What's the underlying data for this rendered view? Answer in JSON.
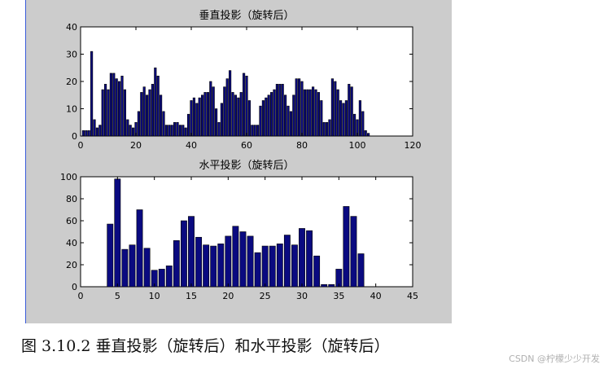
{
  "caption": "图 3.10.2 垂直投影（旋转后）和水平投影（旋转后）",
  "watermark": "CSDN @柠檬少少开发",
  "colors": {
    "bar": "#0a0a80",
    "axes_bg": "#ffffff",
    "figure_bg": "#cccccc"
  },
  "chart_data": [
    {
      "type": "bar",
      "title": "垂直投影（旋转后）",
      "xlabel": "",
      "ylabel": "",
      "xlim": [
        0,
        120
      ],
      "ylim": [
        0,
        40
      ],
      "xticks": [
        0,
        20,
        40,
        60,
        80,
        100,
        120
      ],
      "yticks": [
        0,
        10,
        20,
        30,
        40
      ],
      "x": [
        1,
        2,
        3,
        4,
        5,
        6,
        7,
        8,
        9,
        10,
        11,
        12,
        13,
        14,
        15,
        16,
        17,
        18,
        19,
        20,
        21,
        22,
        23,
        24,
        25,
        26,
        27,
        28,
        29,
        30,
        31,
        32,
        33,
        34,
        35,
        36,
        37,
        38,
        39,
        40,
        41,
        42,
        43,
        44,
        45,
        46,
        47,
        48,
        49,
        50,
        51,
        52,
        53,
        54,
        55,
        56,
        57,
        58,
        59,
        60,
        61,
        62,
        63,
        64,
        65,
        66,
        67,
        68,
        69,
        70,
        71,
        72,
        73,
        74,
        75,
        76,
        77,
        78,
        79,
        80,
        81,
        82,
        83,
        84,
        85,
        86,
        87,
        88,
        89,
        90,
        91,
        92,
        93,
        94,
        95,
        96,
        97,
        98,
        99,
        100,
        101,
        102,
        103,
        104,
        105,
        106,
        107,
        108,
        109
      ],
      "values": [
        2,
        2,
        2,
        31,
        6,
        3,
        4,
        17,
        19,
        17,
        23,
        23,
        21,
        20,
        22,
        17,
        6,
        4,
        3,
        5,
        9,
        16,
        18,
        15,
        17,
        19,
        25,
        22,
        15,
        9,
        4,
        4,
        4,
        5,
        5,
        4,
        4,
        3,
        8,
        13,
        14,
        12,
        14,
        15,
        16,
        16,
        20,
        18,
        10,
        5,
        12,
        18,
        21,
        24,
        16,
        15,
        14,
        16,
        23,
        22,
        13,
        4,
        4,
        4,
        11,
        13,
        14,
        15,
        16,
        17,
        19,
        19,
        19,
        15,
        11,
        9,
        15,
        21,
        21,
        20,
        17,
        17,
        17,
        18,
        17,
        16,
        13,
        5,
        5,
        6,
        21,
        20,
        17,
        13,
        12,
        13,
        19,
        18,
        8,
        6,
        13,
        9,
        2,
        1,
        0,
        0,
        0,
        0,
        0
      ]
    },
    {
      "type": "bar",
      "title": "水平投影（旋转后）",
      "xlabel": "",
      "ylabel": "",
      "xlim": [
        0,
        45
      ],
      "ylim": [
        0,
        100
      ],
      "xticks": [
        0,
        5,
        10,
        15,
        20,
        25,
        30,
        35,
        40,
        45
      ],
      "yticks": [
        0,
        20,
        40,
        60,
        80,
        100
      ],
      "x": [
        4,
        5,
        6,
        7,
        8,
        9,
        10,
        11,
        12,
        13,
        14,
        15,
        16,
        17,
        18,
        19,
        20,
        21,
        22,
        23,
        24,
        25,
        26,
        27,
        28,
        29,
        30,
        31,
        32,
        33,
        34,
        35,
        36,
        37,
        38
      ],
      "values": [
        57,
        98,
        34,
        38,
        70,
        35,
        15,
        16,
        19,
        42,
        60,
        64,
        45,
        38,
        37,
        39,
        46,
        55,
        50,
        46,
        31,
        37,
        37,
        39,
        47,
        38,
        53,
        51,
        28,
        2,
        2,
        16,
        73,
        64,
        30
      ]
    }
  ]
}
